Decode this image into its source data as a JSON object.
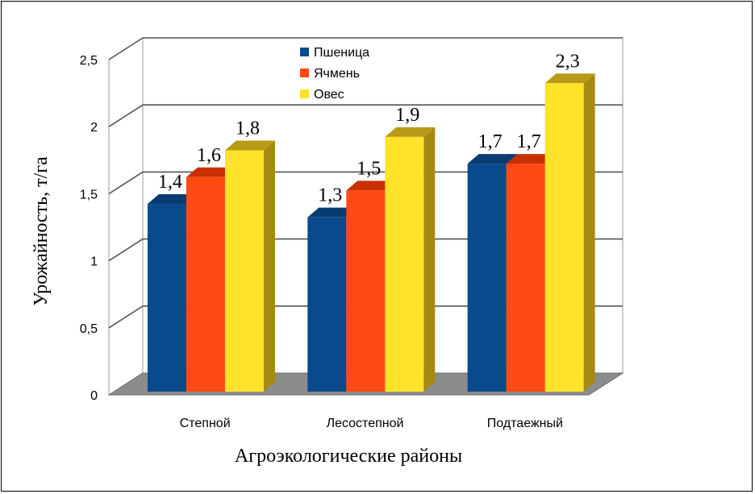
{
  "chart_data": {
    "type": "bar",
    "title": "",
    "xlabel": "Агроэкологические районы",
    "ylabel": "Урожайность, т/га",
    "ylim": [
      0,
      2.5
    ],
    "yticks": [
      "0",
      "0,5",
      "1",
      "1,5",
      "2",
      "2,5"
    ],
    "categories": [
      "Степной",
      "Лесостепной",
      "Подтаежный"
    ],
    "series": [
      {
        "name": "Пшеница",
        "values": [
          1.4,
          1.3,
          1.7
        ],
        "labels": [
          "1,4",
          "1,3",
          "1,7"
        ],
        "color": "#0a4a8c",
        "side": "#063462",
        "top": "#083c72"
      },
      {
        "name": "Ячмень",
        "values": [
          1.6,
          1.5,
          1.7
        ],
        "labels": [
          "1,6",
          "1,5",
          "1,7"
        ],
        "color": "#ff4a14",
        "side": "#b02800",
        "top": "#c83000"
      },
      {
        "name": "Овес",
        "values": [
          1.8,
          1.9,
          2.3
        ],
        "labels": [
          "1,8",
          "1,9",
          "2,3"
        ],
        "color": "#ffe22a",
        "side": "#a68a10",
        "top": "#b89a18"
      }
    ],
    "grid": true,
    "legend_position": "top-center",
    "style": "3d-column"
  }
}
